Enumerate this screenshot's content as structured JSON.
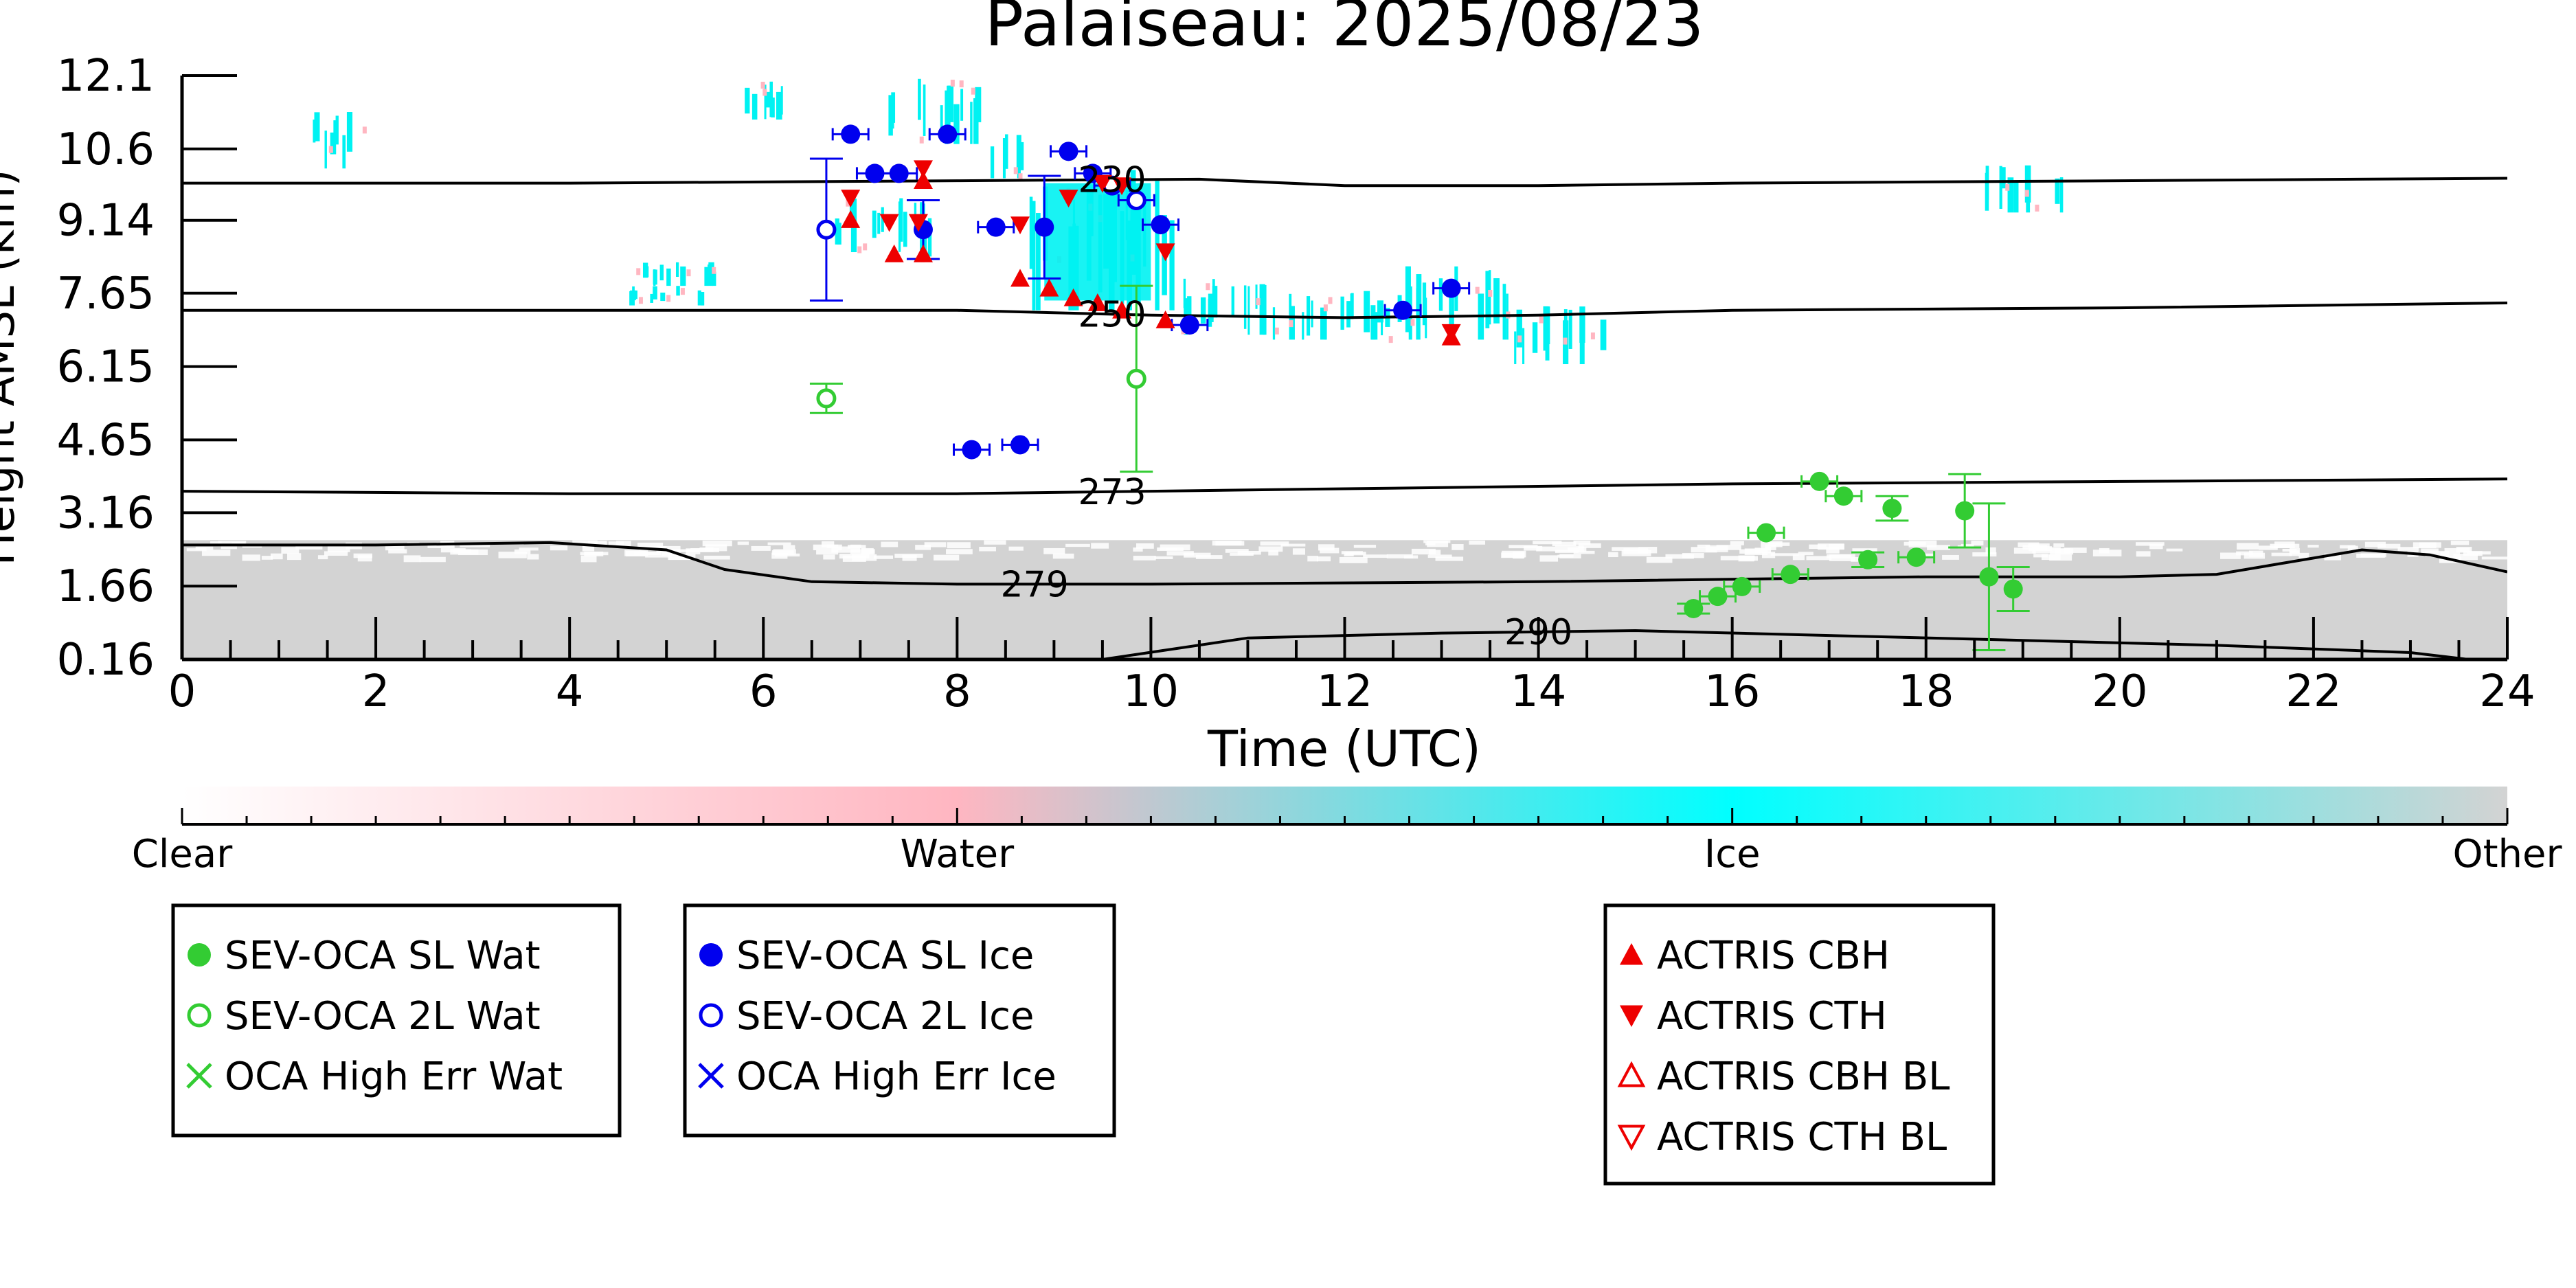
{
  "chart_data": {
    "type": "scatter",
    "title": "Palaiseau: 2025/08/23",
    "xlabel": "Time (UTC)",
    "ylabel": "Height AMSL (km)",
    "xlim": [
      0,
      24
    ],
    "ylim": [
      0.16,
      12.1
    ],
    "x_ticks": [
      "0",
      "2",
      "4",
      "6",
      "8",
      "10",
      "12",
      "14",
      "16",
      "18",
      "20",
      "22",
      "24"
    ],
    "y_ticks": [
      "0.16",
      "1.66",
      "3.16",
      "4.65",
      "6.15",
      "7.65",
      "9.14",
      "10.6",
      "12.1"
    ],
    "grid": false,
    "colorbar": {
      "labels": [
        "Clear",
        "Water",
        "Ice",
        "Other"
      ],
      "colors": [
        "#ffffff",
        "#ffb6c1",
        "#00ffff",
        "#d3d3d3"
      ]
    },
    "colors": {
      "water": "#33cc33",
      "ice": "#0000ee",
      "actris": "#ee0000",
      "cloud_ice": "#00f2f2",
      "cloud_other": "#d3d3d3",
      "cloud_water": "#ffb6c1"
    },
    "contours": [
      {
        "label": "230",
        "label_x": 9.6,
        "y": [
          [
            0,
            9.9
          ],
          [
            4,
            9.9
          ],
          [
            8,
            9.95
          ],
          [
            10.5,
            9.98
          ],
          [
            12,
            9.85
          ],
          [
            14,
            9.85
          ],
          [
            16,
            9.9
          ],
          [
            20,
            9.95
          ],
          [
            24,
            10.0
          ]
        ]
      },
      {
        "label": "250",
        "label_x": 9.6,
        "y": [
          [
            0,
            7.3
          ],
          [
            4,
            7.3
          ],
          [
            8,
            7.3
          ],
          [
            10,
            7.2
          ],
          [
            12,
            7.15
          ],
          [
            14,
            7.2
          ],
          [
            16,
            7.3
          ],
          [
            20,
            7.35
          ],
          [
            24,
            7.45
          ]
        ]
      },
      {
        "label": "273",
        "label_x": 9.6,
        "y": [
          [
            0,
            3.6
          ],
          [
            4,
            3.55
          ],
          [
            8,
            3.55
          ],
          [
            10,
            3.6
          ],
          [
            12,
            3.65
          ],
          [
            14,
            3.7
          ],
          [
            16,
            3.75
          ],
          [
            20,
            3.8
          ],
          [
            24,
            3.85
          ]
        ]
      },
      {
        "label": "279",
        "label_x": 8.8,
        "y": [
          [
            0,
            2.5
          ],
          [
            2,
            2.5
          ],
          [
            3.8,
            2.55
          ],
          [
            5,
            2.4
          ],
          [
            5.6,
            2.0
          ],
          [
            6.5,
            1.75
          ],
          [
            8,
            1.7
          ],
          [
            10,
            1.7
          ],
          [
            14,
            1.75
          ],
          [
            18,
            1.85
          ],
          [
            20,
            1.85
          ],
          [
            21,
            1.9
          ],
          [
            22.5,
            2.4
          ],
          [
            23.2,
            2.3
          ],
          [
            24,
            1.95
          ]
        ]
      },
      {
        "label": "290",
        "label_x": 14.0,
        "y": [
          [
            9.5,
            0.16
          ],
          [
            11,
            0.6
          ],
          [
            13,
            0.7
          ],
          [
            15,
            0.75
          ],
          [
            17,
            0.65
          ],
          [
            19,
            0.55
          ],
          [
            21,
            0.45
          ],
          [
            23,
            0.3
          ],
          [
            23.6,
            0.16
          ]
        ]
      }
    ],
    "series": [
      {
        "name": "SEV-OCA SL Wat",
        "marker": "filled-circle",
        "color": "#33cc33",
        "points": [
          {
            "x": 15.6,
            "y": 1.2,
            "yerr": 0.1
          },
          {
            "x": 15.85,
            "y": 1.45,
            "yerr": 0.0
          },
          {
            "x": 16.1,
            "y": 1.65,
            "yerr": 0.0
          },
          {
            "x": 16.35,
            "y": 2.75,
            "yerr": 0.0
          },
          {
            "x": 16.6,
            "y": 1.9,
            "yerr": 0.0
          },
          {
            "x": 16.9,
            "y": 3.8,
            "yerr": 0.0
          },
          {
            "x": 17.15,
            "y": 3.5,
            "yerr": 0.0
          },
          {
            "x": 17.4,
            "y": 2.2,
            "yerr": 0.15
          },
          {
            "x": 17.65,
            "y": 3.25,
            "yerr": 0.25
          },
          {
            "x": 17.9,
            "y": 2.25,
            "yerr": 0.0
          },
          {
            "x": 18.4,
            "y": 3.2,
            "yerr": 0.75
          },
          {
            "x": 18.65,
            "y": 1.85,
            "yerr": 1.5
          },
          {
            "x": 18.9,
            "y": 1.6,
            "yerr": 0.45
          }
        ]
      },
      {
        "name": "SEV-OCA 2L Wat",
        "marker": "open-circle",
        "color": "#33cc33",
        "points": [
          {
            "x": 6.65,
            "y": 5.5,
            "yerr": 0.3
          },
          {
            "x": 9.85,
            "y": 5.9,
            "yerr": 1.9
          }
        ]
      },
      {
        "name": "OCA High Err Wat",
        "marker": "x",
        "color": "#33cc33",
        "points": []
      },
      {
        "name": "SEV-OCA SL Ice",
        "marker": "filled-circle",
        "color": "#0000ee",
        "points": [
          {
            "x": 6.9,
            "y": 10.9,
            "yerr": 0.0
          },
          {
            "x": 7.15,
            "y": 10.1,
            "yerr": 0.0
          },
          {
            "x": 7.4,
            "y": 10.1,
            "yerr": 0.0
          },
          {
            "x": 7.65,
            "y": 8.95,
            "yerr": 0.6
          },
          {
            "x": 7.9,
            "y": 10.9,
            "yerr": 0.0
          },
          {
            "x": 8.15,
            "y": 4.45,
            "yerr": 0.0
          },
          {
            "x": 8.4,
            "y": 9.0,
            "yerr": 0.0
          },
          {
            "x": 8.65,
            "y": 4.55,
            "yerr": 0.0
          },
          {
            "x": 8.9,
            "y": 9.0,
            "yerr": 1.05
          },
          {
            "x": 9.15,
            "y": 10.55,
            "yerr": 0.0
          },
          {
            "x": 9.4,
            "y": 10.1,
            "yerr": 0.0
          },
          {
            "x": 10.1,
            "y": 9.05,
            "yerr": 0.0
          },
          {
            "x": 10.4,
            "y": 7.0,
            "yerr": 0.0
          },
          {
            "x": 12.6,
            "y": 7.3,
            "yerr": 0.0
          },
          {
            "x": 13.1,
            "y": 7.75,
            "yerr": 0.0
          }
        ]
      },
      {
        "name": "SEV-OCA 2L Ice",
        "marker": "open-circle",
        "color": "#0000ee",
        "points": [
          {
            "x": 6.65,
            "y": 8.95,
            "yerr": 1.45
          },
          {
            "x": 9.6,
            "y": 9.85,
            "yerr": 0.0
          },
          {
            "x": 9.85,
            "y": 9.55,
            "yerr": 0.0
          }
        ]
      },
      {
        "name": "OCA High Err Ice",
        "marker": "x",
        "color": "#0000ee",
        "points": []
      },
      {
        "name": "ACTRIS CBH",
        "marker": "triangle-up",
        "color": "#ee0000",
        "points": [
          {
            "x": 6.9,
            "y": 9.15
          },
          {
            "x": 7.35,
            "y": 8.45
          },
          {
            "x": 7.65,
            "y": 8.45
          },
          {
            "x": 7.65,
            "y": 9.95
          },
          {
            "x": 8.65,
            "y": 7.95
          },
          {
            "x": 8.95,
            "y": 7.75
          },
          {
            "x": 9.2,
            "y": 7.55
          },
          {
            "x": 9.45,
            "y": 7.45
          },
          {
            "x": 9.7,
            "y": 7.3
          },
          {
            "x": 10.15,
            "y": 7.1
          },
          {
            "x": 13.1,
            "y": 6.75
          }
        ]
      },
      {
        "name": "ACTRIS CTH",
        "marker": "triangle-down",
        "color": "#ee0000",
        "points": [
          {
            "x": 6.9,
            "y": 9.6
          },
          {
            "x": 7.3,
            "y": 9.1
          },
          {
            "x": 7.6,
            "y": 9.1
          },
          {
            "x": 7.65,
            "y": 10.2
          },
          {
            "x": 8.65,
            "y": 9.05
          },
          {
            "x": 9.15,
            "y": 9.6
          },
          {
            "x": 9.5,
            "y": 9.9
          },
          {
            "x": 9.7,
            "y": 9.85
          },
          {
            "x": 10.15,
            "y": 8.5
          },
          {
            "x": 13.1,
            "y": 6.85
          }
        ]
      },
      {
        "name": "ACTRIS CBH BL",
        "marker": "open-triangle-up",
        "color": "#ee0000",
        "points": []
      },
      {
        "name": "ACTRIS CTH BL",
        "marker": "open-triangle-down",
        "color": "#ee0000",
        "points": []
      }
    ],
    "cloud_mask": {
      "ice": [
        [
          1.3,
          1.9,
          10.2,
          11.4
        ],
        [
          4.6,
          5.5,
          7.8,
          8.3
        ],
        [
          4.6,
          5.4,
          7.4,
          7.8
        ],
        [
          5.7,
          6.3,
          11.2,
          12.0
        ],
        [
          6.7,
          7.8,
          8.4,
          9.6
        ],
        [
          7.2,
          8.2,
          10.7,
          12.1
        ],
        [
          8.3,
          8.7,
          10.0,
          10.9
        ],
        [
          8.6,
          10.2,
          7.3,
          10.2
        ],
        [
          10.2,
          11.2,
          6.8,
          8.0
        ],
        [
          11.2,
          12.5,
          6.7,
          7.7
        ],
        [
          12.5,
          13.7,
          6.7,
          8.2
        ],
        [
          13.7,
          14.7,
          6.2,
          7.4
        ],
        [
          18.6,
          19.4,
          9.3,
          10.4
        ]
      ],
      "other": [
        [
          0,
          24,
          0.16,
          2.6
        ]
      ]
    },
    "legend": {
      "boxes": [
        [
          "SEV-OCA SL Wat",
          "SEV-OCA 2L Wat",
          "OCA High Err Wat"
        ],
        [
          "SEV-OCA SL Ice",
          "SEV-OCA 2L Ice",
          "OCA High Err Ice"
        ],
        [
          "ACTRIS CBH",
          "ACTRIS CTH",
          "ACTRIS CBH BL",
          "ACTRIS CTH BL"
        ]
      ]
    }
  }
}
